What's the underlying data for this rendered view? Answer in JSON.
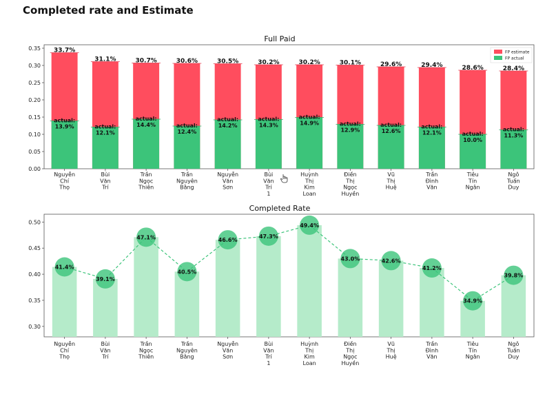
{
  "page": {
    "title": "Completed rate and Estimate"
  },
  "chart_data": [
    {
      "type": "bar",
      "title": "Full Paid",
      "categories": [
        [
          "Nguyễn",
          "Chí",
          "Thọ"
        ],
        [
          "Bùi",
          "Văn",
          "Trí"
        ],
        [
          "Trần",
          "Ngọc",
          "Thiên"
        ],
        [
          "Trần",
          "Nguyên",
          "Bằng"
        ],
        [
          "Nguyễn",
          "Văn",
          "Sơn"
        ],
        [
          "Bùi",
          "Văn",
          "Trí",
          "1"
        ],
        [
          "Huỳnh",
          "Thị",
          "Kim",
          "Loan"
        ],
        [
          "Điền",
          "Thị",
          "Ngọc",
          "Huyền"
        ],
        [
          "Vũ",
          "Thị",
          "Huệ"
        ],
        [
          "Trần",
          "Đình",
          "Văn"
        ],
        [
          "Tiêu",
          "Tín",
          "Ngân"
        ],
        [
          "Ngô",
          "Tuấn",
          "Duy"
        ]
      ],
      "series": [
        {
          "name": "FP estimate",
          "color": "#ff4d5e",
          "values": [
            0.337,
            0.311,
            0.307,
            0.306,
            0.305,
            0.302,
            0.302,
            0.301,
            0.296,
            0.294,
            0.286,
            0.284
          ],
          "labels": [
            "33.7%",
            "31.1%",
            "30.7%",
            "30.6%",
            "30.5%",
            "30.2%",
            "30.2%",
            "30.1%",
            "29.6%",
            "29.4%",
            "28.6%",
            "28.4%"
          ]
        },
        {
          "name": "FP actual",
          "color": "#3cc47a",
          "values": [
            0.139,
            0.121,
            0.144,
            0.124,
            0.142,
            0.143,
            0.149,
            0.129,
            0.126,
            0.121,
            0.1,
            0.113
          ],
          "labels": [
            "actual:\n13.9%",
            "actual:\n12.1%",
            "actual:\n14.4%",
            "actual:\n12.4%",
            "actual:\n14.2%",
            "actual:\n14.3%",
            "actual:\n14.9%",
            "actual:\n12.9%",
            "actual:\n12.6%",
            "actual:\n12.1%",
            "actual:\n10.0%",
            "actual:\n11.3%"
          ]
        }
      ],
      "ylim": [
        0,
        0.36
      ],
      "yticks": [
        "0.00",
        "0.05",
        "0.10",
        "0.15",
        "0.20",
        "0.25",
        "0.30",
        "0.35"
      ],
      "ytick_values": [
        0,
        0.05,
        0.1,
        0.15,
        0.2,
        0.25,
        0.3,
        0.35
      ],
      "legend": "top-right",
      "grid": false
    },
    {
      "type": "line",
      "title": "Completed Rate",
      "categories_ref": "same as Full Paid",
      "values": [
        0.414,
        0.391,
        0.471,
        0.405,
        0.466,
        0.473,
        0.494,
        0.43,
        0.426,
        0.412,
        0.349,
        0.398
      ],
      "labels": [
        "41.4%",
        "39.1%",
        "47.1%",
        "40.5%",
        "46.6%",
        "47.3%",
        "49.4%",
        "43.0%",
        "42.6%",
        "41.2%",
        "34.9%",
        "39.8%"
      ],
      "bars": true,
      "line_color": "#3cc47a",
      "bar_color": "#b5ebca",
      "ylim": [
        0.28,
        0.515
      ],
      "yticks": [
        "0.30",
        "0.35",
        "0.40",
        "0.45",
        "0.50"
      ],
      "ytick_values": [
        0.3,
        0.35,
        0.4,
        0.45,
        0.5
      ],
      "grid": false
    }
  ]
}
